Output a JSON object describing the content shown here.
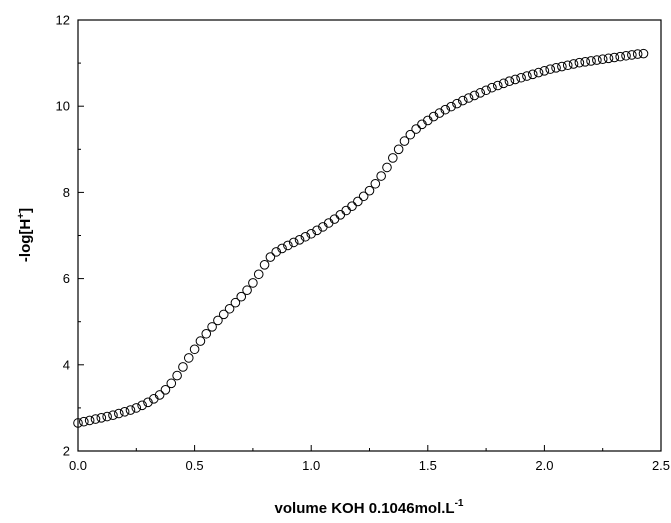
{
  "chart_data": {
    "type": "scatter",
    "title": "",
    "xlabel": "volume KOH 0.1046mol.L",
    "xlabel_superscript": "-1",
    "ylabel": "-log[H",
    "ylabel_superscript": "+",
    "ylabel_suffix": "]",
    "xlim": [
      0.0,
      2.5
    ],
    "ylim": [
      2,
      12
    ],
    "xticks": [
      "0.0",
      "0.5",
      "1.0",
      "1.5",
      "2.0",
      "2.5"
    ],
    "yticks": [
      "2",
      "4",
      "6",
      "8",
      "10",
      "12"
    ],
    "grid": false,
    "legend": "none",
    "marker": "open-circle",
    "series": [
      {
        "x": [
          0.0,
          0.025,
          0.05,
          0.075,
          0.1,
          0.125,
          0.15,
          0.175,
          0.2,
          0.225,
          0.25,
          0.275,
          0.3,
          0.325,
          0.35,
          0.375,
          0.4,
          0.425,
          0.45,
          0.475,
          0.5,
          0.525,
          0.55,
          0.575,
          0.6,
          0.625,
          0.65,
          0.675,
          0.7,
          0.725,
          0.75,
          0.775,
          0.8,
          0.825,
          0.85,
          0.875,
          0.9,
          0.925,
          0.95,
          0.975,
          1.0,
          1.025,
          1.05,
          1.075,
          1.1,
          1.125,
          1.15,
          1.175,
          1.2,
          1.225,
          1.25,
          1.275,
          1.3,
          1.325,
          1.35,
          1.375,
          1.4,
          1.425,
          1.45,
          1.475,
          1.5,
          1.525,
          1.55,
          1.575,
          1.6,
          1.625,
          1.65,
          1.675,
          1.7,
          1.725,
          1.75,
          1.775,
          1.8,
          1.825,
          1.85,
          1.875,
          1.9,
          1.925,
          1.95,
          1.975,
          2.0,
          2.025,
          2.05,
          2.075,
          2.1,
          2.125,
          2.15,
          2.175,
          2.2,
          2.225,
          2.25,
          2.275,
          2.3,
          2.325,
          2.35,
          2.375,
          2.4,
          2.425
        ],
        "y": [
          2.65,
          2.68,
          2.71,
          2.74,
          2.77,
          2.8,
          2.83,
          2.87,
          2.91,
          2.95,
          3.0,
          3.06,
          3.13,
          3.21,
          3.3,
          3.42,
          3.57,
          3.75,
          3.95,
          4.16,
          4.36,
          4.55,
          4.72,
          4.88,
          5.03,
          5.17,
          5.3,
          5.44,
          5.58,
          5.73,
          5.9,
          6.1,
          6.32,
          6.5,
          6.62,
          6.7,
          6.77,
          6.84,
          6.9,
          6.97,
          7.04,
          7.12,
          7.2,
          7.29,
          7.38,
          7.48,
          7.58,
          7.68,
          7.79,
          7.91,
          8.04,
          8.2,
          8.38,
          8.58,
          8.8,
          9.0,
          9.19,
          9.34,
          9.47,
          9.58,
          9.67,
          9.76,
          9.84,
          9.92,
          9.99,
          10.06,
          10.13,
          10.19,
          10.25,
          10.31,
          10.37,
          10.43,
          10.48,
          10.53,
          10.58,
          10.62,
          10.66,
          10.7,
          10.74,
          10.78,
          10.82,
          10.86,
          10.89,
          10.92,
          10.95,
          10.98,
          11.01,
          11.03,
          11.05,
          11.07,
          11.09,
          11.11,
          11.13,
          11.15,
          11.17,
          11.19,
          11.21,
          11.22
        ]
      }
    ]
  }
}
